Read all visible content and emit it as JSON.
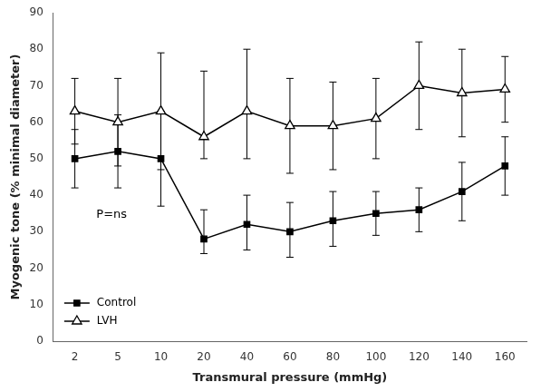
{
  "chart_data": {
    "type": "line",
    "x_label": "Transmural pressure (mmHg)",
    "y_label": "Myogenic tone (% minimal diameter)",
    "categories": [
      "2",
      "5",
      "10",
      "20",
      "40",
      "60",
      "80",
      "100",
      "120",
      "140",
      "160"
    ],
    "series": [
      {
        "name": "Control",
        "color": "#000000",
        "marker": "square",
        "line_style": "solid",
        "values": [
          50,
          52,
          50,
          28,
          32,
          30,
          33,
          35,
          36,
          41,
          48
        ],
        "yerr_upper": [
          8,
          10,
          13,
          8,
          8,
          8,
          8,
          6,
          6,
          8,
          8
        ],
        "yerr_lower": [
          8,
          10,
          13,
          4,
          7,
          7,
          7,
          6,
          6,
          8,
          8
        ]
      },
      {
        "name": "LVH",
        "color": "#000000",
        "marker": "triangle_open",
        "line_style": "solid",
        "values": [
          63,
          60,
          63,
          56,
          63,
          59,
          59,
          61,
          70,
          68,
          69
        ],
        "yerr_upper": [
          9,
          12,
          16,
          18,
          17,
          13,
          12,
          11,
          12,
          12,
          9
        ],
        "yerr_lower": [
          9,
          12,
          16,
          6,
          13,
          13,
          12,
          11,
          12,
          12,
          9
        ]
      }
    ],
    "ylim": [
      0,
      90
    ],
    "yticks": [
      0,
      10,
      20,
      30,
      40,
      50,
      60,
      70,
      80,
      90
    ],
    "grid": false,
    "legend": "lower left",
    "annotations": [
      {
        "text": "P=ns",
        "x": 0.5,
        "y": 33
      }
    ]
  }
}
